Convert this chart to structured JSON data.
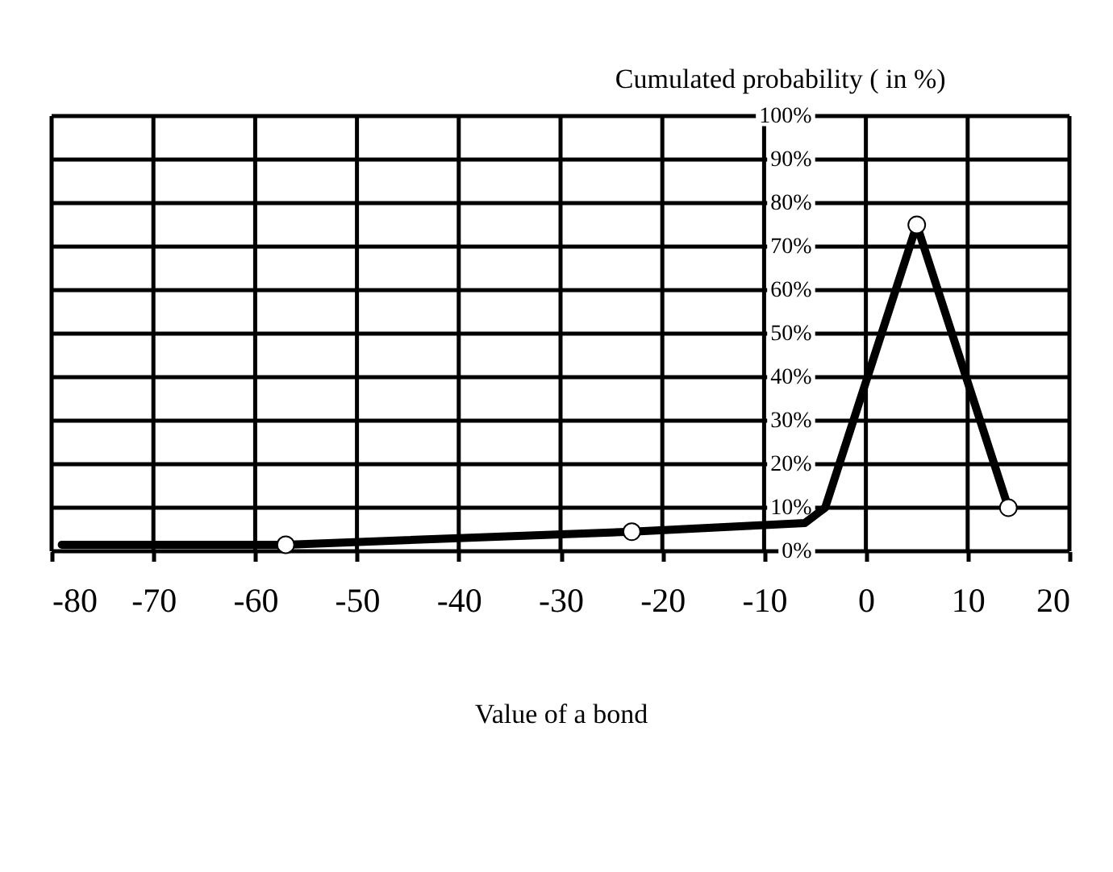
{
  "chart_data": {
    "type": "line",
    "ylabel": "Cumulated    probability       ( in %)",
    "xlabel": "Value of a bond",
    "series": [
      {
        "type": "line",
        "color": "#000000",
        "marker": "none",
        "x": [
          -79,
          -57,
          -23,
          -6,
          -4,
          5,
          14
        ],
        "values": [
          1.5,
          1.5,
          4.5,
          6.5,
          10,
          75,
          10
        ]
      },
      {
        "type": "scatter",
        "color": "#000000",
        "marker": "circle",
        "x": [
          -57,
          -23,
          5,
          14
        ],
        "values": [
          1.5,
          4.5,
          75,
          10
        ]
      }
    ],
    "xlim": [
      -80,
      20
    ],
    "xticks": [
      -80,
      -70,
      -60,
      -50,
      -40,
      -30,
      -20,
      -10,
      0,
      10,
      20
    ],
    "ylim": [
      0,
      100
    ],
    "yticks": [
      {
        "value": 0,
        "label": "0%"
      },
      {
        "value": 10,
        "label": "10%"
      },
      {
        "value": 20,
        "label": "20%"
      },
      {
        "value": 30,
        "label": "30%"
      },
      {
        "value": 40,
        "label": "40%"
      },
      {
        "value": 50,
        "label": "50%"
      },
      {
        "value": 60,
        "label": "60%"
      },
      {
        "value": 70,
        "label": "70%"
      },
      {
        "value": 80,
        "label": "80%"
      },
      {
        "value": 90,
        "label": "90%"
      },
      {
        "value": 100,
        "label": "100%"
      }
    ],
    "grid": true
  }
}
